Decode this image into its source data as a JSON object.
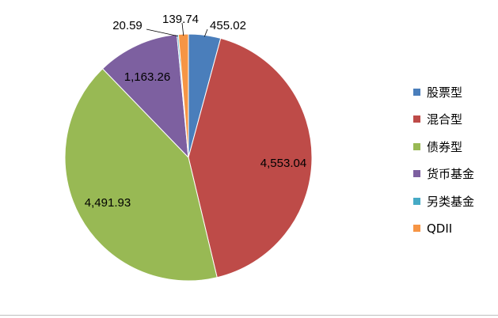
{
  "chart_data": {
    "type": "pie",
    "title": "",
    "categories": [
      "股票型",
      "混合型",
      "债券型",
      "货币基金",
      "另类基金",
      "QDII"
    ],
    "values": [
      455.02,
      4553.04,
      4491.93,
      1163.26,
      20.59,
      139.74
    ],
    "data_labels": [
      "455.02",
      "4,553.04",
      "4,491.93",
      "1,163.26",
      "20.59",
      "139.74"
    ],
    "colors": [
      "#4a7ebb",
      "#be4b48",
      "#98b954",
      "#7d60a0",
      "#46aac5",
      "#f69545"
    ],
    "start_angle_deg": 0,
    "direction": "clockwise",
    "legend_position": "right"
  }
}
